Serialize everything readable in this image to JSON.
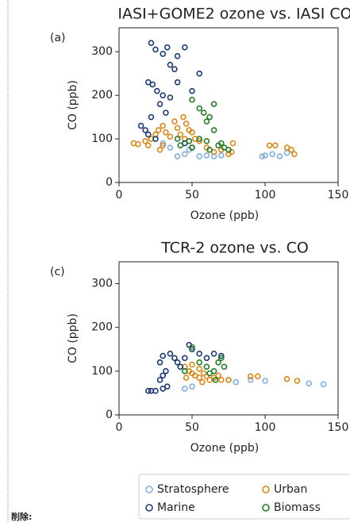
{
  "chart_data": [
    {
      "type": "scatter",
      "title": "IASI+GOME2 ozone vs. IASI CO",
      "panel_label": "(a)",
      "x_label": "Ozone (ppb)",
      "y_label": "CO (ppb)",
      "xlim": [
        0,
        150
      ],
      "ylim": [
        0,
        355
      ],
      "xticks": [
        0,
        50,
        100,
        150
      ],
      "yticks": [
        0,
        100,
        200,
        300
      ],
      "series": [
        {
          "name": "Stratosphere",
          "color": "#86aed6",
          "x": [
            40,
            45,
            55,
            60,
            65,
            70,
            98,
            100,
            105,
            110,
            115,
            35,
            30,
            48
          ],
          "values": [
            60,
            65,
            60,
            62,
            60,
            62,
            60,
            62,
            65,
            60,
            68,
            80,
            90,
            75
          ]
        },
        {
          "name": "Urban",
          "color": "#d4891e",
          "x": [
            10,
            13,
            18,
            20,
            22,
            25,
            27,
            30,
            32,
            35,
            38,
            40,
            42,
            45,
            48,
            50,
            52,
            55,
            30,
            28,
            60,
            65,
            70,
            75,
            77,
            78,
            103,
            107,
            115,
            118,
            120,
            44,
            46
          ],
          "values": [
            90,
            88,
            95,
            85,
            100,
            110,
            120,
            130,
            115,
            105,
            140,
            125,
            110,
            100,
            120,
            115,
            100,
            95,
            85,
            75,
            80,
            70,
            75,
            65,
            70,
            90,
            85,
            85,
            80,
            75,
            65,
            150,
            135
          ]
        },
        {
          "name": "Marine",
          "color": "#1f3a6e",
          "x": [
            22,
            25,
            30,
            33,
            35,
            38,
            40,
            45,
            20,
            23,
            26,
            30,
            35,
            40,
            28,
            32,
            22,
            18,
            20,
            25,
            45,
            50,
            15,
            55,
            50
          ],
          "values": [
            320,
            305,
            295,
            310,
            270,
            260,
            290,
            310,
            230,
            225,
            210,
            200,
            195,
            230,
            180,
            160,
            150,
            120,
            110,
            100,
            90,
            80,
            130,
            250,
            210
          ]
        },
        {
          "name": "Biomass",
          "color": "#2a7a2a",
          "x": [
            50,
            55,
            58,
            62,
            60,
            65,
            65,
            55,
            60,
            70,
            68,
            72,
            75,
            62,
            50,
            48,
            42,
            40
          ],
          "values": [
            190,
            170,
            160,
            150,
            140,
            180,
            120,
            100,
            95,
            90,
            85,
            80,
            75,
            75,
            80,
            95,
            85,
            100
          ]
        }
      ]
    },
    {
      "type": "scatter",
      "title": "TCR-2 ozone vs. CO",
      "panel_label": "(c)",
      "x_label": "Ozone (ppb)",
      "y_label": "CO (ppb)",
      "xlim": [
        0,
        150
      ],
      "ylim": [
        0,
        350
      ],
      "xticks": [
        0,
        50,
        100,
        150
      ],
      "yticks": [
        0,
        100,
        200,
        300
      ],
      "series": [
        {
          "name": "Stratosphere",
          "color": "#86aed6",
          "x": [
            45,
            50,
            80,
            90,
            100,
            130,
            140,
            75
          ],
          "values": [
            60,
            65,
            75,
            80,
            78,
            72,
            70,
            80
          ]
        },
        {
          "name": "Urban",
          "color": "#d4891e",
          "x": [
            45,
            48,
            50,
            52,
            55,
            58,
            60,
            62,
            65,
            68,
            70,
            55,
            50,
            57,
            75,
            90,
            95,
            115,
            122,
            46
          ],
          "values": [
            110,
            100,
            95,
            90,
            85,
            95,
            88,
            80,
            85,
            90,
            80,
            105,
            115,
            75,
            80,
            88,
            88,
            82,
            78,
            85
          ]
        },
        {
          "name": "Marine",
          "color": "#1f3a6e",
          "x": [
            20,
            22,
            25,
            30,
            33,
            28,
            30,
            32,
            28,
            30,
            35,
            38,
            40,
            42,
            45,
            48,
            50,
            55,
            60,
            65,
            70
          ],
          "values": [
            55,
            55,
            55,
            60,
            65,
            80,
            90,
            100,
            120,
            135,
            140,
            130,
            120,
            110,
            130,
            160,
            150,
            140,
            130,
            140,
            135
          ]
        },
        {
          "name": "Biomass",
          "color": "#2a7a2a",
          "x": [
            60,
            65,
            68,
            70,
            72,
            66,
            55,
            62,
            50,
            45
          ],
          "values": [
            110,
            100,
            120,
            130,
            110,
            80,
            120,
            95,
            155,
            100
          ]
        }
      ]
    }
  ],
  "note": "削除:"
}
